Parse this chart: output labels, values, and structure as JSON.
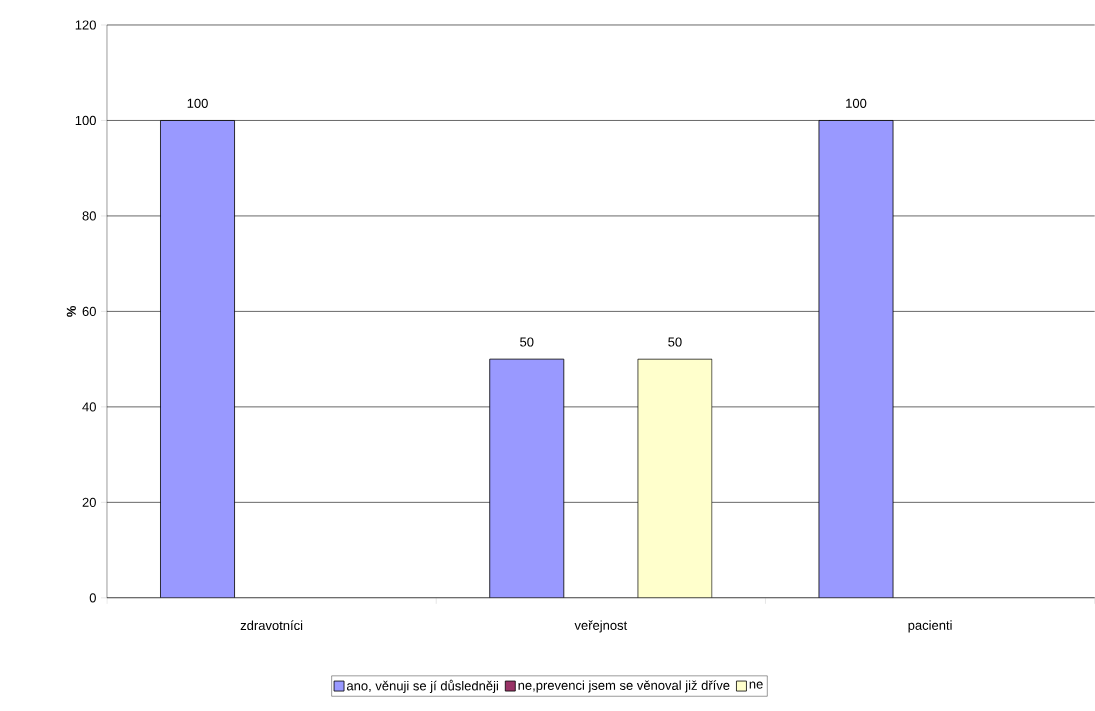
{
  "chart_data": {
    "type": "bar",
    "ylabel": "%",
    "categories": [
      "zdravotníci",
      "veřejnost",
      "pacienti"
    ],
    "series": [
      {
        "name": "ano, věnuji se jí důsledněji",
        "color": "#9999ff",
        "values": [
          100,
          50,
          100
        ],
        "value_labels": [
          "100",
          "50",
          "100"
        ]
      },
      {
        "name": "ne,prevenci jsem se věnoval již dříve",
        "color": "#993366",
        "values": [
          null,
          null,
          null
        ]
      },
      {
        "name": "ne",
        "color": "#ffffcc",
        "values": [
          null,
          50,
          null
        ],
        "value_labels": [
          null,
          "50",
          null
        ]
      }
    ],
    "ylim": [
      0,
      120
    ],
    "yticks": [
      0,
      20,
      40,
      60,
      80,
      100,
      120
    ],
    "grid": "y",
    "legend": "bottom"
  }
}
